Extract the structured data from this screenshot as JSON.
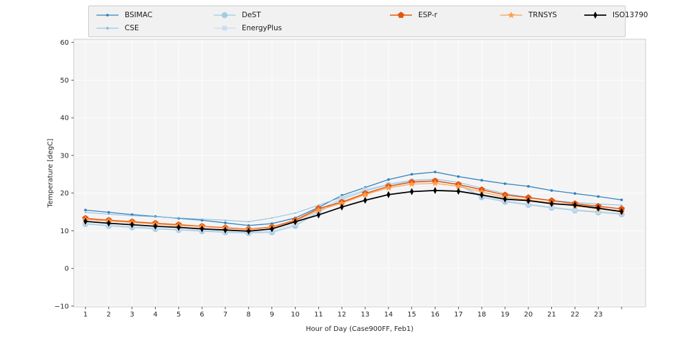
{
  "figure": {
    "x_label": "Hour of Day (Case900FF, Feb1)",
    "y_label": "Temperature [degC]"
  },
  "chart_data": {
    "type": "line",
    "title": "",
    "xlabel": "Hour of Day (Case900FF, Feb1)",
    "ylabel": "Temperature [degC]",
    "x": [
      1,
      2,
      3,
      4,
      5,
      6,
      7,
      8,
      9,
      10,
      11,
      12,
      13,
      14,
      15,
      16,
      17,
      18,
      19,
      20,
      21,
      22,
      23,
      24
    ],
    "xtick_labels": [
      1,
      2,
      3,
      4,
      5,
      6,
      7,
      8,
      9,
      10,
      11,
      12,
      13,
      14,
      15,
      16,
      17,
      18,
      19,
      20,
      21,
      22,
      23
    ],
    "yticks": [
      -10,
      0,
      10,
      20,
      30,
      40,
      50,
      60
    ],
    "xlim": [
      0.497,
      25.03
    ],
    "ylim": [
      -10.2,
      60.86
    ],
    "grid": true,
    "legend_position": "top-center",
    "plot_bg": "#f4f4f5",
    "grid_color": "#fdfdfd",
    "spine_color": "#cccccc",
    "series": [
      {
        "name": "BSIMAC",
        "color": "#3182bd",
        "marker": "dot",
        "line_width": 1.3,
        "values": [
          15.5,
          14.9,
          14.3,
          13.8,
          13.3,
          12.8,
          12.1,
          11.4,
          11.9,
          13.4,
          16.2,
          19.4,
          21.5,
          23.6,
          25.0,
          25.6,
          24.4,
          23.4,
          22.5,
          21.8,
          20.7,
          19.9,
          19.1,
          18.2
        ]
      },
      {
        "name": "CSE",
        "color": "#85bcdb",
        "marker": "tiny",
        "line_width": 1.0,
        "values": [
          14.9,
          14.4,
          14.0,
          13.7,
          13.4,
          13.1,
          12.8,
          12.4,
          13.4,
          14.7,
          16.8,
          18.9,
          20.8,
          22.4,
          23.4,
          23.7,
          22.9,
          21.3,
          19.9,
          18.9,
          18.1,
          17.5,
          17.1,
          16.8
        ]
      },
      {
        "name": "DeST",
        "color": "#9ecae1",
        "marker": "circle",
        "line_width": 1.2,
        "values": [
          11.8,
          11.3,
          10.9,
          10.5,
          10.2,
          9.9,
          9.6,
          9.4,
          9.6,
          11.3,
          15.0,
          18.3,
          20.6,
          22.2,
          23.1,
          23.3,
          22.2,
          18.9,
          17.7,
          16.9,
          16.1,
          15.4,
          14.9,
          14.4
        ]
      },
      {
        "name": "EnergyPlus",
        "color": "#c6dbef",
        "marker": "square",
        "line_width": 1.2,
        "values": [
          12.0,
          11.5,
          11.1,
          10.7,
          10.4,
          10.1,
          9.8,
          9.6,
          9.9,
          11.8,
          15.4,
          18.7,
          20.9,
          22.4,
          23.2,
          23.4,
          22.4,
          19.3,
          18.0,
          17.1,
          16.3,
          15.6,
          15.1,
          14.6
        ]
      },
      {
        "name": "ESP-r",
        "color": "#e6550d",
        "marker": "pentagon",
        "line_width": 1.5,
        "values": [
          13.3,
          12.8,
          12.4,
          12.0,
          11.6,
          11.2,
          10.8,
          10.4,
          11.0,
          12.8,
          15.9,
          17.6,
          19.9,
          21.8,
          22.9,
          23.2,
          22.3,
          20.9,
          19.5,
          18.8,
          18.0,
          17.2,
          16.5,
          15.8
        ]
      },
      {
        "name": "TRNSYS",
        "color": "#fd9e4d",
        "marker": "star",
        "line_width": 1.2,
        "values": [
          13.0,
          12.6,
          12.2,
          11.8,
          11.4,
          11.1,
          10.7,
          10.3,
          10.9,
          12.6,
          15.5,
          17.3,
          19.6,
          21.4,
          22.4,
          22.6,
          21.8,
          20.3,
          18.9,
          18.2,
          17.4,
          16.6,
          15.8,
          15.0
        ]
      },
      {
        "name": "ISO13790",
        "color": "#000000",
        "marker": "thin-diamond",
        "line_width": 1.8,
        "values": [
          12.5,
          12.0,
          11.6,
          11.2,
          10.9,
          10.5,
          10.2,
          9.9,
          10.5,
          12.4,
          14.2,
          16.3,
          18.1,
          19.6,
          20.4,
          20.7,
          20.5,
          19.5,
          18.4,
          18.0,
          17.2,
          16.8,
          16.0,
          15.1
        ]
      }
    ]
  }
}
